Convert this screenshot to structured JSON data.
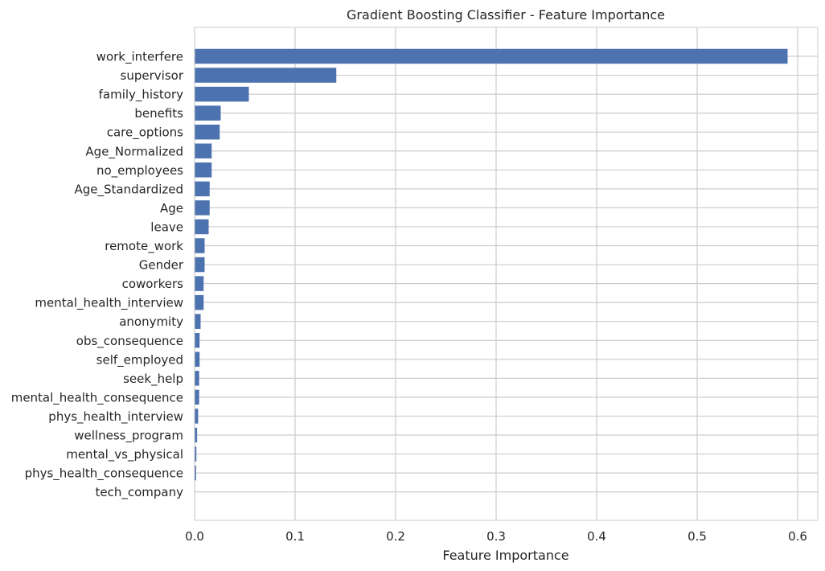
{
  "chart_data": {
    "type": "bar",
    "orientation": "horizontal",
    "title": "Gradient Boosting Classifier - Feature Importance",
    "xlabel": "Feature Importance",
    "ylabel": "",
    "xlim": [
      0,
      0.62
    ],
    "xticks": [
      0.0,
      0.1,
      0.2,
      0.3,
      0.4,
      0.5,
      0.6
    ],
    "xtick_labels": [
      "0.0",
      "0.1",
      "0.2",
      "0.3",
      "0.4",
      "0.5",
      "0.6"
    ],
    "grid": true,
    "bar_color": "#4c72b0",
    "categories": [
      "work_interfere",
      "supervisor",
      "family_history",
      "benefits",
      "care_options",
      "Age_Normalized",
      "no_employees",
      "Age_Standardized",
      "Age",
      "leave",
      "remote_work",
      "Gender",
      "coworkers",
      "mental_health_interview",
      "anonymity",
      "obs_consequence",
      "self_employed",
      "seek_help",
      "mental_health_consequence",
      "phys_health_interview",
      "wellness_program",
      "mental_vs_physical",
      "phys_health_consequence",
      "tech_company"
    ],
    "values": [
      0.59,
      0.141,
      0.054,
      0.026,
      0.025,
      0.017,
      0.017,
      0.015,
      0.015,
      0.014,
      0.01,
      0.01,
      0.009,
      0.009,
      0.006,
      0.005,
      0.005,
      0.0045,
      0.0045,
      0.0035,
      0.0025,
      0.0018,
      0.0015,
      0.0
    ]
  }
}
